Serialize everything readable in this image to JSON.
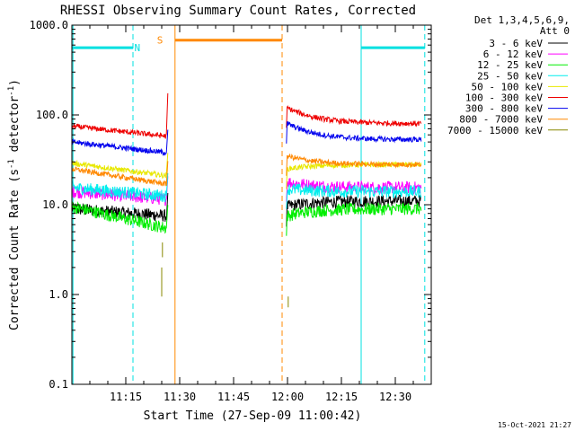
{
  "chart_data": {
    "type": "line",
    "title": "RHESSI Observing Summary Count Rates, Corrected",
    "xlabel": "Start Time (27-Sep-09 11:00:42)",
    "ylabel_main": "Corrected Count Rate (s",
    "ylabel_sup1": "-1",
    "ylabel_mid": " detector",
    "ylabel_sup2": "-1",
    "ylabel_end": ")",
    "y_scale": "log",
    "ylim": [
      0.1,
      1000
    ],
    "xlim_minutes": [
      0,
      100
    ],
    "x_ticks": [
      {
        "t": 15,
        "label": "11:15"
      },
      {
        "t": 30,
        "label": "11:30"
      },
      {
        "t": 45,
        "label": "11:45"
      },
      {
        "t": 60,
        "label": "12:00"
      },
      {
        "t": 75,
        "label": "12:15"
      },
      {
        "t": 90,
        "label": "12:30"
      }
    ],
    "y_ticks": [
      {
        "v": 1000,
        "label": "1000.0"
      },
      {
        "v": 100,
        "label": "100.0"
      },
      {
        "v": 10,
        "label": "10.0"
      },
      {
        "v": 1,
        "label": "1.0"
      },
      {
        "v": 0.1,
        "label": "0.1"
      }
    ],
    "legend_header": [
      "Det 1,3,4,5,6,9,",
      "Att 0"
    ],
    "legend_position": "right",
    "series": [
      {
        "name": "3 - 6 keV",
        "color": "#000000",
        "pre": [
          9.0,
          7.5
        ],
        "post": [
          9.5,
          11.0
        ]
      },
      {
        "name": "6 - 12 keV",
        "color": "#ff00ff",
        "pre": [
          14.0,
          11.5
        ],
        "post": [
          18.0,
          15.5
        ]
      },
      {
        "name": "12 - 25 keV",
        "color": "#00ee00",
        "pre": [
          9.5,
          5.5
        ],
        "post": [
          7.5,
          9.0
        ]
      },
      {
        "name": "25 - 50 keV",
        "color": "#00eeee",
        "pre": [
          15.5,
          12.5
        ],
        "post": [
          15.0,
          14.0
        ]
      },
      {
        "name": "50 - 100 keV",
        "color": "#e8e800",
        "pre": [
          29.0,
          21.0
        ],
        "post": [
          25.0,
          28.0
        ]
      },
      {
        "name": "100 - 300 keV",
        "color": "#ee0000",
        "pre": [
          75.0,
          58.0
        ],
        "post": [
          120.0,
          80.0
        ]
      },
      {
        "name": "300 - 800 keV",
        "color": "#0000ee",
        "pre": [
          50.0,
          38.0
        ],
        "post": [
          80.0,
          53.0
        ]
      },
      {
        "name": "800 - 7000 keV",
        "color": "#ff8800",
        "pre": [
          25.0,
          17.0
        ],
        "post": [
          35.0,
          28.0
        ]
      },
      {
        "name": "7000 - 15000 keV",
        "color": "#888800",
        "pre": [
          0,
          0
        ],
        "post": [
          0,
          0
        ]
      }
    ],
    "segments": {
      "pre": [
        0,
        26.3
      ],
      "post": [
        59.7,
        97.2
      ]
    },
    "flags": [
      {
        "label": "N",
        "color": "#00e0e0",
        "level": 560,
        "ranges": [
          [
            0,
            17
          ]
        ],
        "label_t": 18.2
      },
      {
        "label": "S",
        "color": "#ff8800",
        "level": 680,
        "ranges": [
          [
            28.7,
            58.5
          ]
        ],
        "label_t": 24.5
      },
      {
        "label": "",
        "color": "#00e0e0",
        "level": 560,
        "ranges": [
          [
            80.5,
            98.2
          ]
        ],
        "label_t": 0
      }
    ],
    "vlines": [
      {
        "t": 0.3,
        "color": "#00e0e0",
        "style": "solid"
      },
      {
        "t": 17.0,
        "color": "#00e0e0",
        "style": "dash"
      },
      {
        "t": 28.7,
        "color": "#ff8800",
        "style": "solid"
      },
      {
        "t": 58.5,
        "color": "#ff8800",
        "style": "dash"
      },
      {
        "t": 80.5,
        "color": "#00e0e0",
        "style": "solid"
      },
      {
        "t": 98.2,
        "color": "#00e0e0",
        "style": "dash"
      }
    ],
    "footer": "15-Oct-2021 21:27"
  }
}
